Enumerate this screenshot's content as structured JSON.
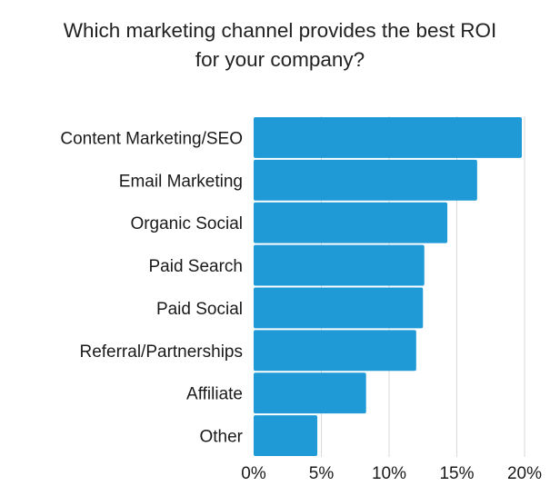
{
  "chart_data": {
    "type": "bar",
    "orientation": "horizontal",
    "title_line1": "Which marketing channel provides the best ROI",
    "title_line2": "for your company?",
    "categories": [
      "Content Marketing/SEO",
      "Email Marketing",
      "Organic Social",
      "Paid Search",
      "Paid Social",
      "Referral/Partnerships",
      "Affiliate",
      "Other"
    ],
    "values": [
      19.8,
      16.5,
      14.3,
      12.6,
      12.5,
      12.0,
      8.3,
      4.7
    ],
    "xlim": [
      0,
      20
    ],
    "x_ticks": [
      "0%",
      "5%",
      "10%",
      "15%",
      "20%"
    ],
    "x_tick_values": [
      0,
      5,
      10,
      15,
      20
    ],
    "grid": true,
    "bar_color": "#1f9ad6",
    "grid_color": "#d9d9d9"
  }
}
